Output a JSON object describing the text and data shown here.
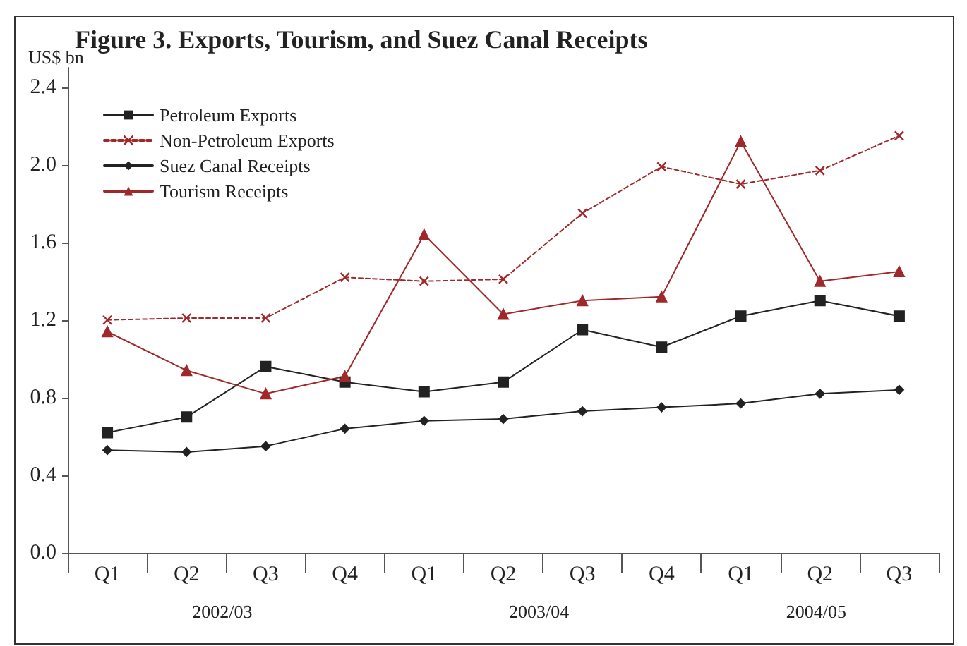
{
  "chart_data": {
    "type": "line",
    "title": "Figure 3. Exports, Tourism, and Suez Canal Receipts",
    "ylabel": "US$ bn",
    "categories": [
      "Q1",
      "Q2",
      "Q3",
      "Q4",
      "Q1",
      "Q2",
      "Q3",
      "Q4",
      "Q1",
      "Q2",
      "Q3"
    ],
    "series": [
      {
        "name": "Petroleum Exports",
        "color": "#222222",
        "marker": "square",
        "line_style": "solid",
        "values": [
          0.62,
          0.7,
          0.96,
          0.88,
          0.83,
          0.88,
          1.15,
          1.06,
          1.22,
          1.3,
          1.22
        ]
      },
      {
        "name": "Non-Petroleum Exports",
        "color": "#a0282a",
        "marker": "cross",
        "line_style": "dashed",
        "values": [
          1.2,
          1.21,
          1.21,
          1.42,
          1.4,
          1.41,
          1.75,
          1.99,
          1.9,
          1.97,
          2.15
        ]
      },
      {
        "name": "Suez Canal Receipts",
        "color": "#222222",
        "marker": "diamond",
        "line_style": "solid",
        "values": [
          0.53,
          0.52,
          0.55,
          0.64,
          0.68,
          0.69,
          0.73,
          0.75,
          0.77,
          0.82,
          0.84
        ]
      },
      {
        "name": "Tourism Receipts",
        "color": "#a0282a",
        "marker": "triangle",
        "line_style": "solid",
        "values": [
          1.14,
          0.94,
          0.82,
          0.91,
          1.64,
          1.23,
          1.3,
          1.32,
          2.12,
          1.4,
          1.45
        ]
      }
    ],
    "ylim": [
      0,
      2.5
    ],
    "yticks": [
      {
        "value": 0,
        "label": "0.0"
      },
      {
        "value": 0.4,
        "label": "0.4"
      },
      {
        "value": 0.8,
        "label": "0.8"
      },
      {
        "value": 1.2,
        "label": "1.2"
      },
      {
        "value": 1.6,
        "label": "1.6"
      },
      {
        "value": 2.0,
        "label": "2.0"
      },
      {
        "value": 2.4,
        "label": "2.4"
      }
    ],
    "annotations": [
      "2002/03",
      "2003/04",
      "2004/05"
    ],
    "grid": false,
    "legend": "top left"
  }
}
